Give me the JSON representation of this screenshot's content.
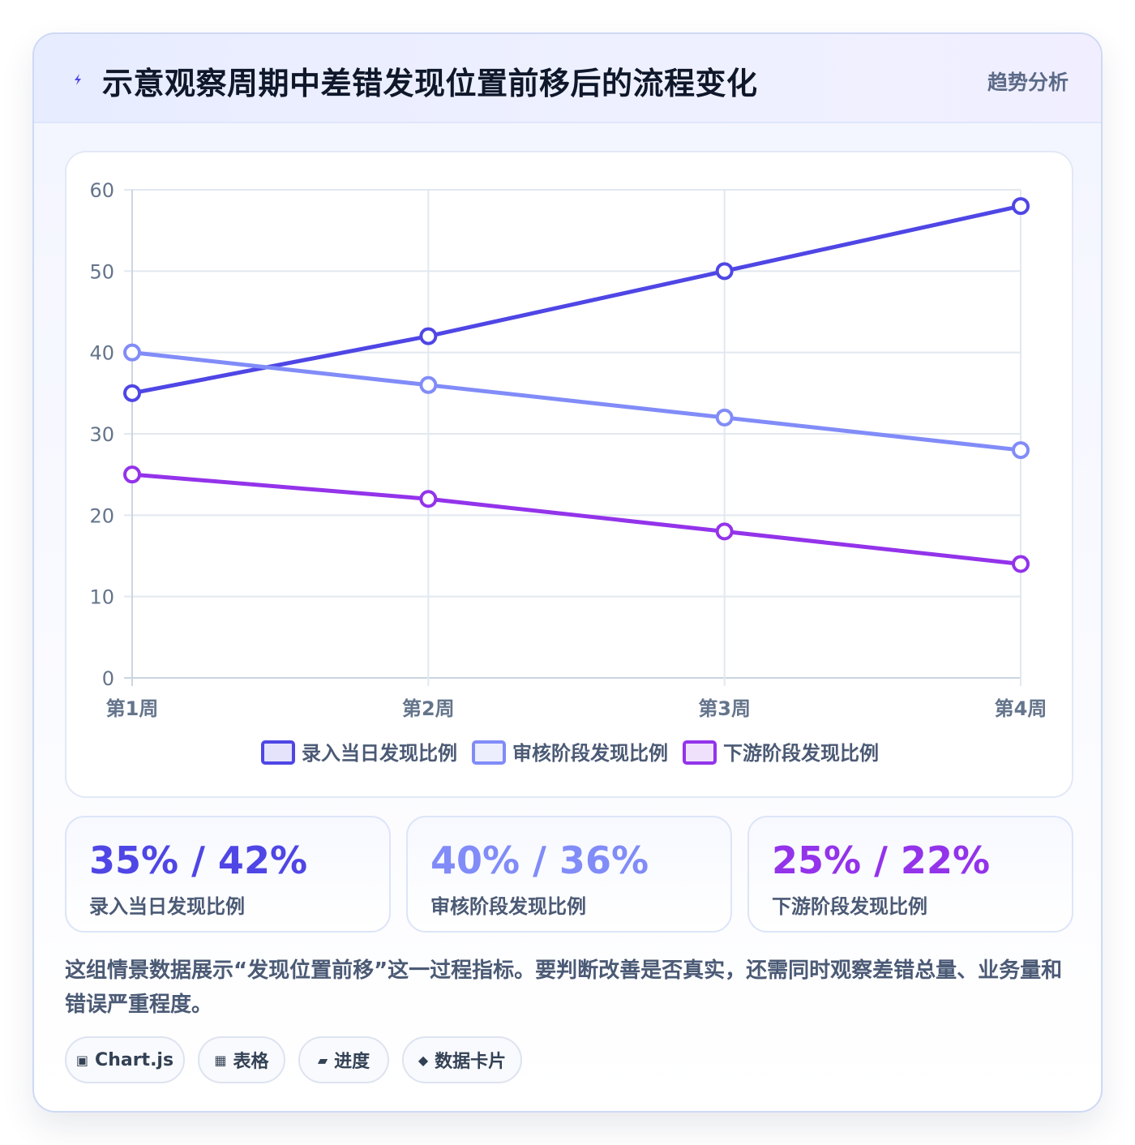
{
  "header": {
    "icon": "bolt-icon",
    "title": "示意观察周期中差错发现位置前移后的流程变化",
    "tag": "趋势分析"
  },
  "chart_data": {
    "type": "line",
    "title": "",
    "xlabel": "",
    "ylabel": "",
    "categories": [
      "第1周",
      "第2周",
      "第3周",
      "第4周"
    ],
    "ylim": [
      0,
      60
    ],
    "yticks": [
      0,
      10,
      20,
      30,
      40,
      50,
      60
    ],
    "grid": true,
    "legend": "bottom-center",
    "series": [
      {
        "name": "录入当日发现比例",
        "values": [
          35,
          42,
          50,
          58
        ],
        "color": "#4f46e5"
      },
      {
        "name": "审核阶段发现比例",
        "values": [
          40,
          36,
          32,
          28
        ],
        "color": "#818cf8"
      },
      {
        "name": "下游阶段发现比例",
        "values": [
          25,
          22,
          18,
          14
        ],
        "color": "#9333ea"
      }
    ]
  },
  "stats": [
    {
      "value": "35% / 42%",
      "label": "录入当日发现比例",
      "color": "#4f46e5"
    },
    {
      "value": "40% / 36%",
      "label": "审核阶段发现比例",
      "color": "#818cf8"
    },
    {
      "value": "25% / 22%",
      "label": "下游阶段发现比例",
      "color": "#9333ea"
    }
  ],
  "description": "这组情景数据展示“发现位置前移”这一过程指标。要判断改善是否真实，还需同时观察差错总量、业务量和错误严重程度。",
  "chips": [
    {
      "icon": "▣",
      "label": "Chart.js"
    },
    {
      "icon": "▦",
      "label": "表格"
    },
    {
      "icon": "▰",
      "label": "进度"
    },
    {
      "icon": "◆",
      "label": "数据卡片"
    }
  ]
}
